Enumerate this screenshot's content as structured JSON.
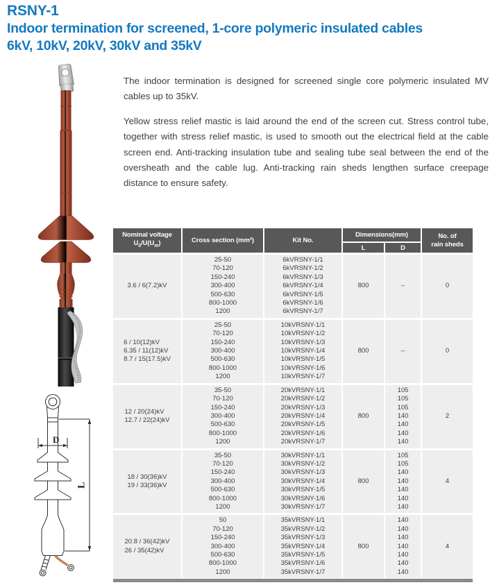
{
  "page": {
    "product_code": "RSNY-1",
    "title_line1": "Indoor termination for screened, 1-core polymeric insulated cables",
    "title_line2": "6kV, 10kV, 20kV, 30kV and 35kV"
  },
  "description": {
    "paragraph1": "The indoor termination is designed for screened single core polymeric insulated MV cables up to 35kV.",
    "paragraph2": "Yellow stress relief mastic is laid around the end of the screen cut. Stress control tube, together with stress relief mastic, is used to smooth out the electrical field at the cable screen end. Anti-tracking insulation tube and sealing tube seal between the end of the oversheath and the cable lug. Anti-tracking rain sheds lengthen surface creepage distance to ensure safety."
  },
  "diagram": {
    "dim_d": "D",
    "dim_l": "L"
  },
  "colors": {
    "accent_blue": "#1579bf",
    "table_header_gray": "#595757",
    "row_gray": "#efeeee",
    "bottom_bar_gray": "#898989",
    "termination_red": "#a84b33"
  },
  "table": {
    "header": {
      "nominal_voltage_line1": "Nominal voltage",
      "uo_base": "U",
      "uo_sub": "0",
      "uo_mid": "/U(U",
      "uo_sub2": "m",
      "uo_end": ")",
      "cross_section": "Cross section (mm²)",
      "kit_no": "Kit No.",
      "dimensions": "Dimensions(mm)",
      "dim_l": "L",
      "dim_d": "D",
      "rain_sheds_line1": "No. of",
      "rain_sheds_line2": "rain sheds"
    },
    "groups": [
      {
        "voltages": [
          "3.6 / 6(7.2)kV"
        ],
        "cross_sections": [
          "25-50",
          "70-120",
          "150-240",
          "300-400",
          "500-630",
          "800-1000",
          "1200"
        ],
        "kit_nos": [
          "6kVRSNY-1/1",
          "6kVRSNY-1/2",
          "6kVRSNY-1/3",
          "6kVRSNY-1/4",
          "6kVRSNY-1/5",
          "6kVRSNY-1/6",
          "6kVRSNY-1/7"
        ],
        "length_l": "800",
        "diameter_d": "–",
        "rain_sheds": "0"
      },
      {
        "voltages": [
          "6 / 10(12)kV",
          "6.35 / 11(12)kV",
          "8.7 / 15(17.5)kV"
        ],
        "cross_sections": [
          "25-50",
          "70-120",
          "150-240",
          "300-400",
          "500-630",
          "800-1000",
          "1200"
        ],
        "kit_nos": [
          "10kVRSNY-1/1",
          "10kVRSNY-1/2",
          "10kVRSNY-1/3",
          "10kVRSNY-1/4",
          "10kVRSNY-1/5",
          "10kVRSNY-1/6",
          "10kVRSNY-1/7"
        ],
        "length_l": "800",
        "diameter_d": "–",
        "rain_sheds": "0"
      },
      {
        "voltages": [
          "12 / 20(24)kV",
          "12.7 / 22(24)kV"
        ],
        "cross_sections": [
          "35-50",
          "70-120",
          "150-240",
          "300-400",
          "500-630",
          "800-1000",
          "1200"
        ],
        "kit_nos": [
          "20kVRSNY-1/1",
          "20kVRSNY-1/2",
          "20kVRSNY-1/3",
          "20kVRSNY-1/4",
          "20kVRSNY-1/5",
          "20kVRSNY-1/6",
          "20kVRSNY-1/7"
        ],
        "length_l": "800",
        "diameter_d": [
          "105",
          "105",
          "105",
          "140",
          "140",
          "140",
          "140"
        ],
        "rain_sheds": "2"
      },
      {
        "voltages": [
          "18 / 30(36)kV",
          "19 / 33(36)kV"
        ],
        "cross_sections": [
          "35-50",
          "70-120",
          "150-240",
          "300-400",
          "500-630",
          "800-1000",
          "1200"
        ],
        "kit_nos": [
          "30kVRSNY-1/1",
          "30kVRSNY-1/2",
          "30kVRSNY-1/3",
          "30kVRSNY-1/4",
          "30kVRSNY-1/5",
          "30kVRSNY-1/6",
          "30kVRSNY-1/7"
        ],
        "length_l": "800",
        "diameter_d": [
          "105",
          "105",
          "140",
          "140",
          "140",
          "140",
          "140"
        ],
        "rain_sheds": "4"
      },
      {
        "voltages": [
          "20.8 / 36(42)kV",
          "26 / 35(42)kV"
        ],
        "cross_sections": [
          "50",
          "70-120",
          "150-240",
          "300-400",
          "500-630",
          "800-1000",
          "1200"
        ],
        "kit_nos": [
          "35kVRSNY-1/1",
          "35kVRSNY-1/2",
          "35kVRSNY-1/3",
          "35kVRSNY-1/4",
          "35kVRSNY-1/5",
          "35kVRSNY-1/6",
          "35kVRSNY-1/7"
        ],
        "length_l": "800",
        "diameter_d": [
          "140",
          "140",
          "140",
          "140",
          "140",
          "140",
          "140"
        ],
        "rain_sheds": "4"
      }
    ]
  }
}
